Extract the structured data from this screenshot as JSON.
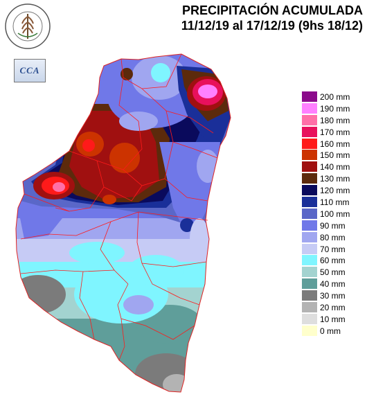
{
  "title": {
    "line1": "PRECIPITACIÓN ACUMULADA",
    "line2": "11/12/19 al 17/12/19 (9hs 18/12)"
  },
  "logos": {
    "seal_text": "BOLSA DE CEREALES DE ENTRE RIOS",
    "cca_text": "CCA"
  },
  "legend": [
    {
      "label": "200 mm",
      "color": "#8b0a8b"
    },
    {
      "label": "190 mm",
      "color": "#ff80ff"
    },
    {
      "label": "180 mm",
      "color": "#ff6fa8"
    },
    {
      "label": "170 mm",
      "color": "#e8105c"
    },
    {
      "label": "160 mm",
      "color": "#ff1a1a"
    },
    {
      "label": "150 mm",
      "color": "#cc3300"
    },
    {
      "label": "140 mm",
      "color": "#a01010"
    },
    {
      "label": "130 mm",
      "color": "#5c2a0c"
    },
    {
      "label": "120 mm",
      "color": "#0a0a5c"
    },
    {
      "label": "110 mm",
      "color": "#1a2f99"
    },
    {
      "label": "100 mm",
      "color": "#5a67c8"
    },
    {
      "label": "90 mm",
      "color": "#7078e8"
    },
    {
      "label": "80 mm",
      "color": "#a0a6f0"
    },
    {
      "label": "70 mm",
      "color": "#c6cbf5"
    },
    {
      "label": "60 mm",
      "color": "#7ff5ff"
    },
    {
      "label": "50 mm",
      "color": "#a3d3d0"
    },
    {
      "label": "40 mm",
      "color": "#5f9e9a"
    },
    {
      "label": "30 mm",
      "color": "#7b7b7b"
    },
    {
      "label": "20 mm",
      "color": "#b3b3b3"
    },
    {
      "label": "10 mm",
      "color": "#dedede"
    },
    {
      "label": "0 mm",
      "color": "#ffffcc"
    }
  ]
}
